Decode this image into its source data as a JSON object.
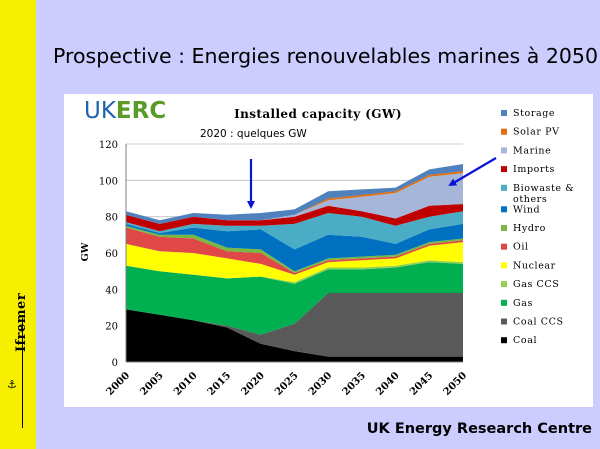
{
  "slide": {
    "title": "Prospective : Energies renouvelables marines à 2050",
    "footer": "UK Energy Research Centre",
    "logo_text": "Ifremer",
    "brand": {
      "prefix": "UK",
      "suffix": "ERC",
      "prefix_color": "#1f63b0",
      "suffix_color": "#5a9b28"
    }
  },
  "annotations": {
    "note_2020": "2020 : quelques GW",
    "arrow_color": "#0a14d8"
  },
  "chart_data": {
    "type": "area",
    "stacked": true,
    "title": "Installed capacity (GW)",
    "ylabel": "GW",
    "xlabel": "",
    "ylim": [
      0,
      120
    ],
    "yticks": [
      0,
      20,
      40,
      60,
      80,
      100,
      120
    ],
    "x": [
      2000,
      2005,
      2010,
      2015,
      2020,
      2025,
      2030,
      2035,
      2040,
      2045,
      2050
    ],
    "grid": "horizontal",
    "legend_position": "right",
    "series": [
      {
        "name": "Coal",
        "color": "#000000",
        "values": [
          29,
          26,
          23,
          19,
          10,
          6,
          3,
          3,
          3,
          3,
          3
        ]
      },
      {
        "name": "Coal CCS",
        "color": "#595959",
        "values": [
          0,
          0,
          0,
          1,
          5,
          15,
          35,
          35,
          35,
          35,
          35
        ]
      },
      {
        "name": "Gas",
        "color": "#00b050",
        "values": [
          24,
          24,
          25,
          26,
          32,
          22,
          13,
          13,
          14,
          17,
          16
        ]
      },
      {
        "name": "Gas CCS",
        "color": "#92d050",
        "values": [
          0,
          0,
          0,
          0,
          0,
          1,
          1,
          1,
          1,
          1,
          1
        ]
      },
      {
        "name": "Nuclear",
        "color": "#ffff00",
        "values": [
          12,
          11,
          12,
          11,
          7,
          4,
          3,
          4,
          4,
          8,
          11
        ]
      },
      {
        "name": "Oil",
        "color": "#e04848",
        "values": [
          9,
          8,
          8,
          4,
          6,
          1,
          1,
          1,
          1,
          1,
          1
        ]
      },
      {
        "name": "Hydro",
        "color": "#77b843",
        "values": [
          1,
          1,
          2,
          2,
          2,
          1,
          1,
          1,
          1,
          1,
          1
        ]
      },
      {
        "name": "Wind",
        "color": "#0070c0",
        "values": [
          1,
          1,
          4,
          9,
          11,
          12,
          13,
          11,
          6,
          7,
          8
        ]
      },
      {
        "name": "Biowaste & others",
        "color": "#4bacc6",
        "values": [
          1,
          1,
          2,
          3,
          2,
          14,
          12,
          11,
          10,
          7,
          7
        ]
      },
      {
        "name": "Imports",
        "color": "#c00000",
        "values": [
          4,
          4,
          4,
          3,
          3,
          4,
          4,
          3,
          4,
          6,
          4
        ]
      },
      {
        "name": "Marine",
        "color": "#a5b6d8",
        "values": [
          0,
          0,
          0,
          0,
          0,
          1,
          3,
          8,
          14,
          16,
          17
        ]
      },
      {
        "name": "Solar PV",
        "color": "#e46c0a",
        "values": [
          0,
          0,
          0,
          0,
          0,
          0,
          1,
          1,
          1,
          1,
          1
        ]
      },
      {
        "name": "Storage",
        "color": "#4f81bd",
        "values": [
          2,
          2,
          2,
          3,
          4,
          3,
          4,
          3,
          2,
          3,
          4
        ]
      }
    ]
  }
}
